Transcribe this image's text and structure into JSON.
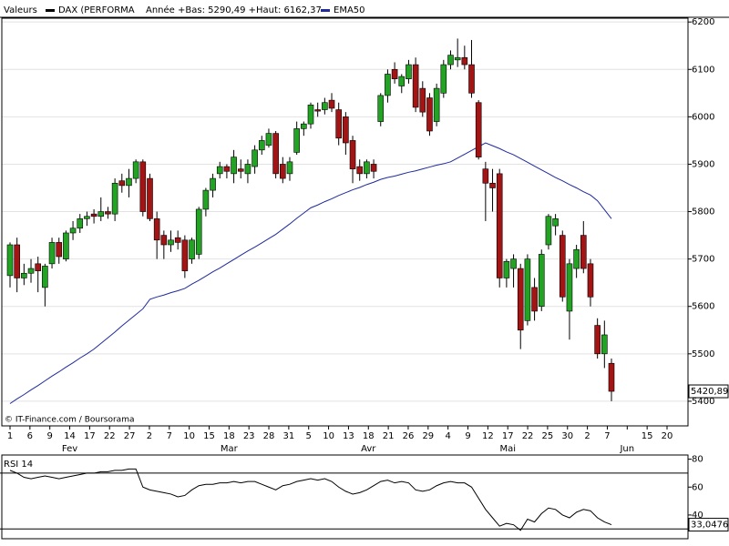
{
  "chart_data": [
    {
      "type": "candlestick",
      "source_label": "Valeurs",
      "name": "DAX (PERFORMA",
      "color": "#000000",
      "subtitle": "Année +Bas: 5290,49 +Haut: 6162,37",
      "credit": "© IT-Finance.com / Boursorama",
      "up_color": "#23a323",
      "down_color": "#a31414",
      "grid": true,
      "xtick_labels": [
        "1",
        "6",
        "9",
        "14",
        "17",
        "22",
        "27",
        "2",
        "7",
        "10",
        "15",
        "18",
        "23",
        "28",
        "31",
        "5",
        "10",
        "13",
        "18",
        "21",
        "26",
        "29",
        "4",
        "9",
        "12",
        "17",
        "22",
        "25",
        "30",
        "2",
        "7",
        null,
        "15",
        "20"
      ],
      "month_labels": [
        null,
        null,
        null,
        "Fev",
        null,
        null,
        null,
        null,
        null,
        null,
        null,
        "Mar",
        null,
        null,
        null,
        null,
        null,
        null,
        "Avr",
        null,
        null,
        null,
        null,
        null,
        null,
        "Mai",
        null,
        null,
        null,
        null,
        null,
        "Jun",
        null,
        null
      ],
      "open": [
        5665,
        5730,
        5660,
        5670,
        5690,
        5640,
        5690,
        5735,
        5700,
        5755,
        5765,
        5785,
        5795,
        5790,
        5800,
        5795,
        5865,
        5855,
        5870,
        5905,
        5870,
        5785,
        5750,
        5730,
        5745,
        5740,
        5700,
        5710,
        5805,
        5845,
        5880,
        5895,
        5880,
        5890,
        5880,
        5895,
        5930,
        5940,
        5965,
        5900,
        5880,
        5925,
        5975,
        5985,
        6015,
        6015,
        6035,
        6015,
        6000,
        5950,
        5895,
        5880,
        5900,
        5990,
        6045,
        6100,
        6065,
        6080,
        6110,
        6060,
        6040,
        5990,
        6050,
        6110,
        6120,
        6125,
        6110,
        6030,
        5890,
        5860,
        5880,
        5660,
        5680,
        5680,
        5570,
        5640,
        5600,
        5730,
        5770,
        5750,
        5590,
        5680,
        5750,
        5690,
        5560,
        5500,
        5480
      ],
      "high": [
        5735,
        5745,
        5690,
        5700,
        5705,
        5690,
        5745,
        5745,
        5760,
        5780,
        5795,
        5800,
        5805,
        5830,
        5810,
        5870,
        5880,
        5890,
        5910,
        5910,
        5880,
        5800,
        5760,
        5760,
        5760,
        5750,
        5745,
        5810,
        5850,
        5880,
        5905,
        5900,
        5930,
        5910,
        5910,
        5940,
        5960,
        5975,
        5970,
        5915,
        5915,
        5990,
        5990,
        6030,
        6030,
        6040,
        6050,
        6030,
        6010,
        5960,
        5910,
        5910,
        5910,
        6050,
        6100,
        6115,
        6090,
        6120,
        6125,
        6075,
        6050,
        6070,
        6120,
        6140,
        6165,
        6150,
        6162,
        6035,
        5905,
        5890,
        5890,
        5700,
        5710,
        5690,
        5710,
        5660,
        5720,
        5795,
        5795,
        5760,
        5700,
        5730,
        5780,
        5700,
        5575,
        5570,
        5490
      ],
      "low": [
        5640,
        5630,
        5645,
        5650,
        5630,
        5600,
        5680,
        5690,
        5695,
        5740,
        5755,
        5770,
        5775,
        5780,
        5785,
        5780,
        5840,
        5830,
        5860,
        5790,
        5780,
        5700,
        5700,
        5715,
        5720,
        5660,
        5690,
        5700,
        5790,
        5830,
        5870,
        5870,
        5860,
        5870,
        5860,
        5880,
        5920,
        5935,
        5870,
        5860,
        5865,
        5920,
        5960,
        5975,
        6000,
        6005,
        6010,
        5940,
        5920,
        5860,
        5865,
        5870,
        5870,
        5980,
        6030,
        6070,
        6050,
        6070,
        6010,
        6000,
        5960,
        5980,
        6040,
        6100,
        6105,
        6100,
        6040,
        5910,
        5780,
        5800,
        5640,
        5640,
        5640,
        5510,
        5560,
        5570,
        5590,
        5720,
        5750,
        5610,
        5530,
        5660,
        5670,
        5600,
        5490,
        5470,
        5400
      ],
      "close": [
        5730,
        5660,
        5670,
        5680,
        5675,
        5685,
        5735,
        5705,
        5755,
        5765,
        5785,
        5790,
        5790,
        5800,
        5795,
        5860,
        5855,
        5870,
        5905,
        5800,
        5785,
        5740,
        5730,
        5740,
        5735,
        5675,
        5740,
        5805,
        5845,
        5870,
        5895,
        5885,
        5915,
        5885,
        5900,
        5930,
        5950,
        5965,
        5880,
        5870,
        5905,
        5975,
        5985,
        6025,
        6012,
        6030,
        6018,
        5955,
        5945,
        5890,
        5880,
        5905,
        5885,
        6045,
        6090,
        6080,
        6085,
        6110,
        6020,
        6010,
        5970,
        6060,
        6110,
        6130,
        6125,
        6110,
        6050,
        5915,
        5860,
        5850,
        5660,
        5695,
        5700,
        5550,
        5700,
        5590,
        5710,
        5790,
        5785,
        5620,
        5690,
        5720,
        5680,
        5620,
        5500,
        5540,
        5420.89
      ],
      "series": [
        {
          "name": "EMA50",
          "color": "#1f2a9c",
          "values": [
            5395,
            5405,
            5414,
            5424,
            5433,
            5443,
            5453,
            5462,
            5472,
            5481,
            5491,
            5500,
            5510,
            5522,
            5534,
            5546,
            5559,
            5571,
            5583,
            5595,
            5615,
            5620,
            5624,
            5629,
            5633,
            5638,
            5647,
            5655,
            5664,
            5673,
            5681,
            5690,
            5699,
            5708,
            5717,
            5725,
            5734,
            5743,
            5752,
            5763,
            5774,
            5786,
            5797,
            5808,
            5814,
            5821,
            5827,
            5834,
            5840,
            5846,
            5851,
            5857,
            5862,
            5868,
            5872,
            5875,
            5879,
            5883,
            5886,
            5890,
            5894,
            5898,
            5901,
            5905,
            5913,
            5921,
            5929,
            5937,
            5945,
            5939,
            5933,
            5926,
            5920,
            5912,
            5904,
            5896,
            5888,
            5880,
            5872,
            5865,
            5857,
            5850,
            5842,
            5835,
            5823,
            5804,
            5785
          ]
        }
      ],
      "ylim": [
        5348,
        6208
      ],
      "yticks": [
        5400,
        5500,
        5600,
        5700,
        5800,
        5900,
        6000,
        6100,
        6200
      ],
      "last_price": {
        "value": 5420.89,
        "label": "5420,89"
      }
    },
    {
      "type": "line",
      "title": "RSI 14",
      "color": "#000000",
      "values": [
        72,
        70,
        67,
        66,
        67,
        68,
        67,
        66,
        67,
        68,
        69,
        70,
        70,
        71,
        71,
        72,
        72,
        73,
        73,
        60,
        58,
        57,
        56,
        55,
        53,
        54,
        58,
        61,
        62,
        62,
        63,
        63,
        64,
        63,
        64,
        64,
        62,
        60,
        58,
        61,
        62,
        64,
        65,
        66,
        65,
        66,
        64,
        60,
        57,
        55,
        56,
        58,
        61,
        64,
        65,
        63,
        64,
        63,
        58,
        57,
        58,
        61,
        63,
        64,
        63,
        63,
        60,
        52,
        44,
        38,
        32,
        34,
        33,
        29,
        37,
        35,
        41,
        45,
        44,
        40,
        38,
        42,
        44,
        43,
        38,
        35,
        33.0476
      ],
      "levels": [
        70,
        30
      ],
      "ylim": [
        23,
        83
      ],
      "yticks": [
        40,
        60,
        80
      ],
      "last_value": {
        "value": 33.0476,
        "label": "33,0476"
      }
    }
  ]
}
